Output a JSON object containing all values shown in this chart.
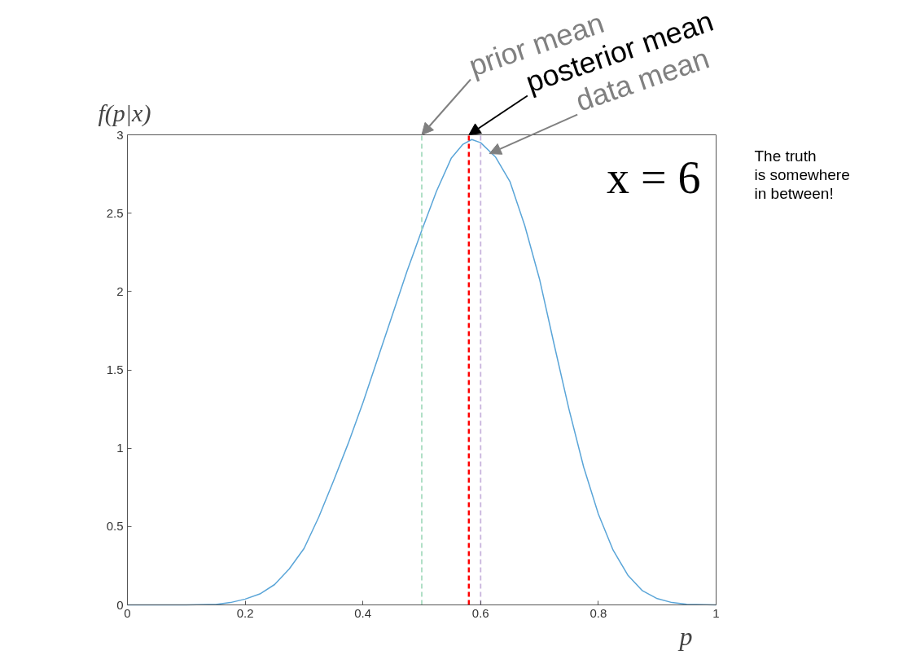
{
  "chart_data": {
    "type": "line",
    "xlabel": "p",
    "ylabel": "f(p|x)",
    "x": [
      0,
      0.1,
      0.15,
      0.175,
      0.2,
      0.225,
      0.25,
      0.275,
      0.3,
      0.325,
      0.35,
      0.375,
      0.4,
      0.425,
      0.45,
      0.475,
      0.5,
      0.525,
      0.55,
      0.57,
      0.585,
      0.6,
      0.625,
      0.65,
      0.675,
      0.7,
      0.725,
      0.75,
      0.775,
      0.8,
      0.825,
      0.85,
      0.875,
      0.9,
      0.925,
      0.95,
      1
    ],
    "series": [
      {
        "color": "#5aa5d8",
        "values": [
          0,
          0,
          0.003,
          0.015,
          0.037,
          0.07,
          0.13,
          0.23,
          0.36,
          0.56,
          0.79,
          1.03,
          1.29,
          1.57,
          1.85,
          2.13,
          2.39,
          2.64,
          2.85,
          2.94,
          2.97,
          2.95,
          2.86,
          2.7,
          2.42,
          2.08,
          1.66,
          1.25,
          0.88,
          0.58,
          0.35,
          0.19,
          0.09,
          0.04,
          0.015,
          0.004,
          0
        ]
      }
    ],
    "xlim": [
      0,
      1
    ],
    "ylim": [
      0,
      3
    ],
    "xticks": [
      0,
      0.2,
      0.4,
      0.6,
      0.8,
      1
    ],
    "yticks": [
      0,
      0.5,
      1,
      1.5,
      2,
      2.5,
      3
    ],
    "grid": false,
    "marker": "none",
    "line_style": "solid",
    "ref_lines": [
      {
        "axis": "x",
        "value": 0.5,
        "color": "#a8dcc0",
        "line_style": "dashed"
      },
      {
        "axis": "x",
        "value": 0.58,
        "color": "#ff0000",
        "line_style": "dashed"
      },
      {
        "axis": "x",
        "value": 0.6,
        "color": "#c8b4dc",
        "line_style": "dashed"
      }
    ],
    "annotations": [
      {
        "text": "prior mean",
        "x": 0.5,
        "y": 3
      },
      {
        "text": "posterior mean",
        "x": 0.58,
        "y": 3
      },
      {
        "text": "data mean",
        "x": 0.615,
        "y": 2.88
      },
      "x = 6",
      "The truth\nis somewhere\nin between!"
    ]
  }
}
